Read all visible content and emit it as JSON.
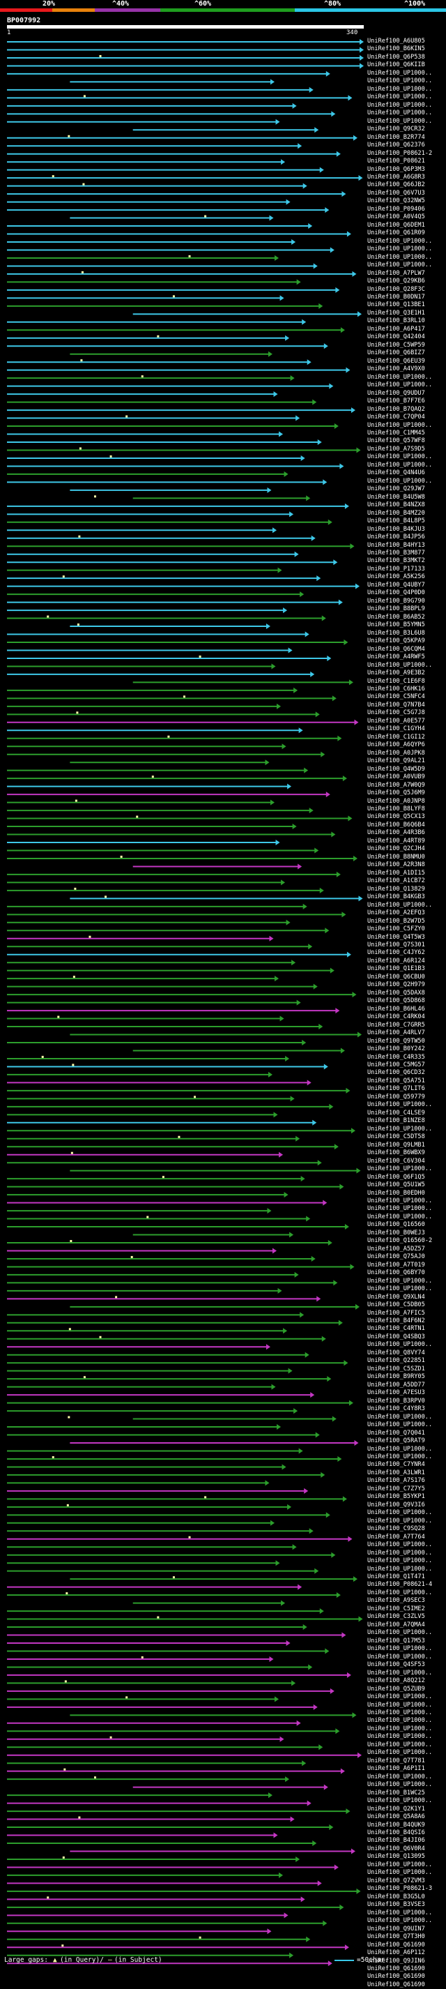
{
  "legend": {
    "colors": [
      "#e8191c",
      "#e8820c",
      "#9733a8",
      "#1f9e1f",
      "#2bc6e6"
    ],
    "labels": [
      "20%",
      "^40%",
      "^60%",
      "^80%",
      "^100%"
    ]
  },
  "query": {
    "id": "BP007992",
    "start": "1",
    "end": "340"
  },
  "colors": {
    "cyan": "#3ec8e8",
    "green": "#2c9e2c",
    "magenta": "#c337c3",
    "gap": "#ffffaa"
  },
  "hits": [
    "UniRef100_A6U805",
    "UniRef100_B6KIN5",
    "UniRef100_Q6P538",
    "UniRef100_Q6KIIB",
    "UniRef100_UP1000..",
    "UniRef100_UP1000..",
    "UniRef100_UP1000..",
    "UniRef100_UP1000..",
    "UniRef100_UP1000..",
    "UniRef100_UP1000..",
    "UniRef100_UP1000..",
    "UniRef100_Q9CR32",
    "UniRef100_B2R774",
    "UniRef100_Q62376",
    "UniRef100_P08621-2",
    "UniRef100_P08621",
    "UniRef100_Q6P3M3",
    "UniRef100_A6G8R3",
    "UniRef100_Q66JB2",
    "UniRef100_Q6V7U3",
    "UniRef100_Q32NW5",
    "UniRef100_P09406",
    "UniRef100_A0V4Q5",
    "UniRef100_Q6DEM1",
    "UniRef100_Q61R09",
    "UniRef100_UP1000..",
    "UniRef100_UP1000..",
    "UniRef100_UP1000..",
    "UniRef100_UP1000..",
    "UniRef100_A7PLW7",
    "UniRef100_Q29KB6",
    "UniRef100_Q28F3C",
    "UniRef100_B0DN17",
    "UniRef100_Q13BE1",
    "UniRef100_Q3E1H1",
    "UniRef100_B3RL10",
    "UniRef100_A6P417",
    "UniRef100_Q42404",
    "UniRef100_C5WP59",
    "UniRef100_Q6BIZ7",
    "UniRef100_Q6EU39",
    "UniRef100_A4V9X0",
    "UniRef100_UP1000..",
    "UniRef100_UP1000..",
    "UniRef100_Q9UDU7",
    "UniRef100_B7F7E6",
    "UniRef100_B7QAQ2",
    "UniRef100_C7QP04",
    "UniRef100_UP1000..",
    "UniRef100_C1MM45",
    "UniRef100_Q57WF8",
    "UniRef100_A7S9D5",
    "UniRef100_UP1000..",
    "UniRef100_UP1000..",
    "UniRef100_Q4N4U6",
    "UniRef100_UP1000..",
    "UniRef100_Q29JW7",
    "UniRef100_B4U5W8",
    "UniRef100_B4NZX8",
    "UniRef100_B4MZ20",
    "UniRef100_B4L8P5",
    "UniRef100_B4KJU3",
    "UniRef100_B4JP56",
    "UniRef100_B4HY13",
    "UniRef100_B3M877",
    "UniRef100_B3MKT2",
    "UniRef100_P17133",
    "UniRef100_A5K256",
    "UniRef100_Q4UBY7",
    "UniRef100_Q4P0D0",
    "UniRef100_B9G790",
    "UniRef100_B8BPL9",
    "UniRef100_B6AB52",
    "UniRef100_B5YMN5",
    "UniRef100_B3L6U8",
    "UniRef100_Q5KPA9",
    "UniRef100_Q6CQM4",
    "UniRef100_A4RWF5",
    "UniRef100_UP1000..",
    "UniRef100_A9E3B2",
    "UniRef100_C1E6F8",
    "UniRef100_C6HK16",
    "UniRef100_C5NFC4",
    "UniRef100_Q7N7B4",
    "UniRef100_C5G7J8",
    "UniRef100_A0E577",
    "UniRef100_C1GYH4",
    "UniRef100_C1GI12",
    "UniRef100_A6QYP6",
    "UniRef100_A0JPK8",
    "UniRef100_Q9AL21",
    "UniRef100_Q4W5D9",
    "UniRef100_A0VUB9",
    "UniRef100_A7W0Q9",
    "UniRef100_Q5J6M9",
    "UniRef100_A0JNP8",
    "UniRef100_B8LYF8",
    "UniRef100_Q5CX13",
    "UniRef100_B6Q6B4",
    "UniRef100_A4R3B6",
    "UniRef100_A4RT89",
    "UniRef100_Q2CJH4",
    "UniRef100_B8NMU0",
    "UniRef100_A2R3N8",
    "UniRef100_A1DI15",
    "UniRef100_A1CB72",
    "UniRef100_Q13829",
    "UniRef100_B4KGB3",
    "UniRef100_UP1000..",
    "UniRef100_A2EFQ3",
    "UniRef100_B2W7D5",
    "UniRef100_C5FZY0",
    "UniRef100_Q4T5W3",
    "UniRef100_Q7S301",
    "UniRef100_C4JY62",
    "UniRef100_A6R124",
    "UniRef100_Q1E1B3",
    "UniRef100_Q6CBU0",
    "UniRef100_Q2H979",
    "UniRef100_Q5DAX8",
    "UniRef100_Q5D868",
    "UniRef100_B6HL46",
    "UniRef100_C4RK04",
    "UniRef100_C7GRR5",
    "UniRef100_A4RLV7",
    "UniRef100_Q9TW50",
    "UniRef100_B0Y242",
    "UniRef100_C4R335",
    "UniRef100_C5MG57",
    "UniRef100_Q6CD32",
    "UniRef100_Q5A751",
    "UniRef100_Q7LIT6",
    "UniRef100_Q59779",
    "UniRef100_UP1000..",
    "UniRef100_C4LSE9",
    "UniRef100_B1NZE8",
    "UniRef100_UP1000..",
    "UniRef100_C5DT58",
    "UniRef100_Q9LMB1",
    "UniRef100_B6WBX9",
    "UniRef100_C6V304",
    "UniRef100_UP1000..",
    "UniRef100_Q6F1Q5",
    "UniRef100_Q5U1W5",
    "UniRef100_B0EDH0",
    "UniRef100_UP1000..",
    "UniRef100_UP1000..",
    "UniRef100_UP1000..",
    "UniRef100_Q16560",
    "UniRef100_B0WEJ3",
    "UniRef100_Q16560-2",
    "UniRef100_A5DZ57",
    "UniRef100_Q75AJ0",
    "UniRef100_A7T019",
    "UniRef100_Q6BY70",
    "UniRef100_UP1000..",
    "UniRef100_UP1000..",
    "UniRef100_Q9XLN4",
    "UniRef100_C5DB05",
    "UniRef100_A7FIC5",
    "UniRef100_B4F6N2",
    "UniRef100_C4RTN1",
    "UniRef100_Q4SBQ3",
    "UniRef100_UP1000..",
    "UniRef100_Q8VY74",
    "UniRef100_Q22851",
    "UniRef100_C5SZD1",
    "UniRef100_B9RY05",
    "UniRef100_A5DD77",
    "UniRef100_A7ESU3",
    "UniRef100_B3RPV0",
    "UniRef100_C4Y8R3",
    "UniRef100_UP1000..",
    "UniRef100_UP1000..",
    "UniRef100_Q7Q041",
    "UniRef100_Q5RAT9",
    "UniRef100_UP1000..",
    "UniRef100_UP1000..",
    "UniRef100_C7YNR4",
    "UniRef100_A3LWR1",
    "UniRef100_A7S176",
    "UniRef100_C7Z7Y5",
    "UniRef100_B5YKP1",
    "UniRef100_Q9V3I6",
    "UniRef100_UP1000..",
    "UniRef100_UP1000..",
    "UniRef100_C9SQ28",
    "UniRef100_A7T764",
    "UniRef100_UP1000..",
    "UniRef100_UP1000..",
    "UniRef100_UP1000..",
    "UniRef100_UP1000..",
    "UniRef100_Q1T471",
    "UniRef100_P08621-4",
    "UniRef100_UP1000..",
    "UniRef100_A9SEC3",
    "UniRef100_C5IME2",
    "UniRef100_C3ZLV5",
    "UniRef100_A7QMA4",
    "UniRef100_UP1000..",
    "UniRef100_Q17M53",
    "UniRef100_UP1000..",
    "UniRef100_UP1000..",
    "UniRef100_Q4SF53",
    "UniRef100_UP1000..",
    "UniRef100_A8Q212",
    "UniRef100_Q5ZUB9",
    "UniRef100_UP1000..",
    "UniRef100_UP1000..",
    "UniRef100_UP1000..",
    "UniRef100_UP1000..",
    "UniRef100_UP1000..",
    "UniRef100_UP1000..",
    "UniRef100_UP1000..",
    "UniRef100_UP1000..",
    "UniRef100_Q7T781",
    "UniRef100_A6P1I1",
    "UniRef100_UP1000..",
    "UniRef100_UP1000..",
    "UniRef100_B1WC25",
    "UniRef100_UP1000..",
    "UniRef100_Q2K1Y1",
    "UniRef100_Q5A8A6",
    "UniRef100_B4QUK9",
    "UniRef100_B4QSI6",
    "UniRef100_B4JI06",
    "UniRef100_Q6V0R4",
    "UniRef100_Q13095",
    "UniRef100_UP1000..",
    "UniRef100_UP1000..",
    "UniRef100_Q7ZVM3",
    "UniRef100_P08621-3",
    "UniRef100_B3G5L0",
    "UniRef100_B3VSE3",
    "UniRef100_UP1000..",
    "UniRef100_UP1000..",
    "UniRef100_Q9UIN7",
    "UniRef100_Q7T3H0",
    "UniRef100_Q61690",
    "UniRef100_A6P112",
    "UniRef100_Q9JIN6",
    "UniRef100_Q61690",
    "UniRef100_Q61690",
    "UniRef100_Q61690"
  ],
  "footer": {
    "gaps_label": "Large gaps:",
    "in_query_label": "(in Query)/",
    "in_subject_label": "(in Subject)",
    "scale_label": "=50char."
  }
}
